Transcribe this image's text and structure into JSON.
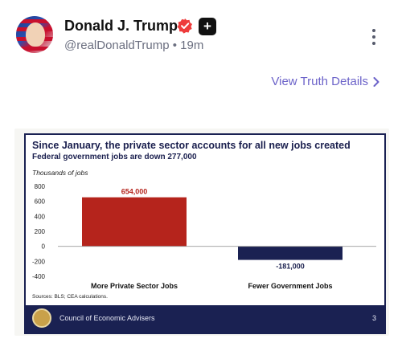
{
  "post": {
    "display_name": "Donald J. Trump",
    "handle": "@realDonaldTrump",
    "separator": "•",
    "time_ago": "19m",
    "plus_badge": "+",
    "view_details": "View Truth Details"
  },
  "icons": {
    "verified": "verified-check-icon",
    "plus": "plus-badge-icon",
    "more": "vertical-ellipsis-icon",
    "chevron": "chevron-right-icon"
  },
  "colors": {
    "link": "#6c63c9",
    "verified": "#ee3b3b",
    "private_bar": "#b5241c",
    "government_bar": "#1a2152",
    "slide_border": "#1a2152"
  },
  "slide": {
    "footer": "Council of Economic Advisers",
    "page_number": "3",
    "sources": "Sources: BLS; CEA calculations."
  },
  "chart_data": {
    "type": "bar",
    "title": "Since January, the private sector accounts for all new jobs created",
    "subtitle": "Federal government jobs are down 277,000",
    "ylabel": "Thousands of jobs",
    "ylim": [
      -400,
      800
    ],
    "yticks": [
      800,
      600,
      400,
      200,
      0,
      -200,
      -400
    ],
    "categories": [
      "More Private Sector Jobs",
      "Fewer Government Jobs"
    ],
    "values": [
      654,
      -181
    ],
    "value_labels": [
      "654,000",
      "-181,000"
    ],
    "grid": false
  }
}
